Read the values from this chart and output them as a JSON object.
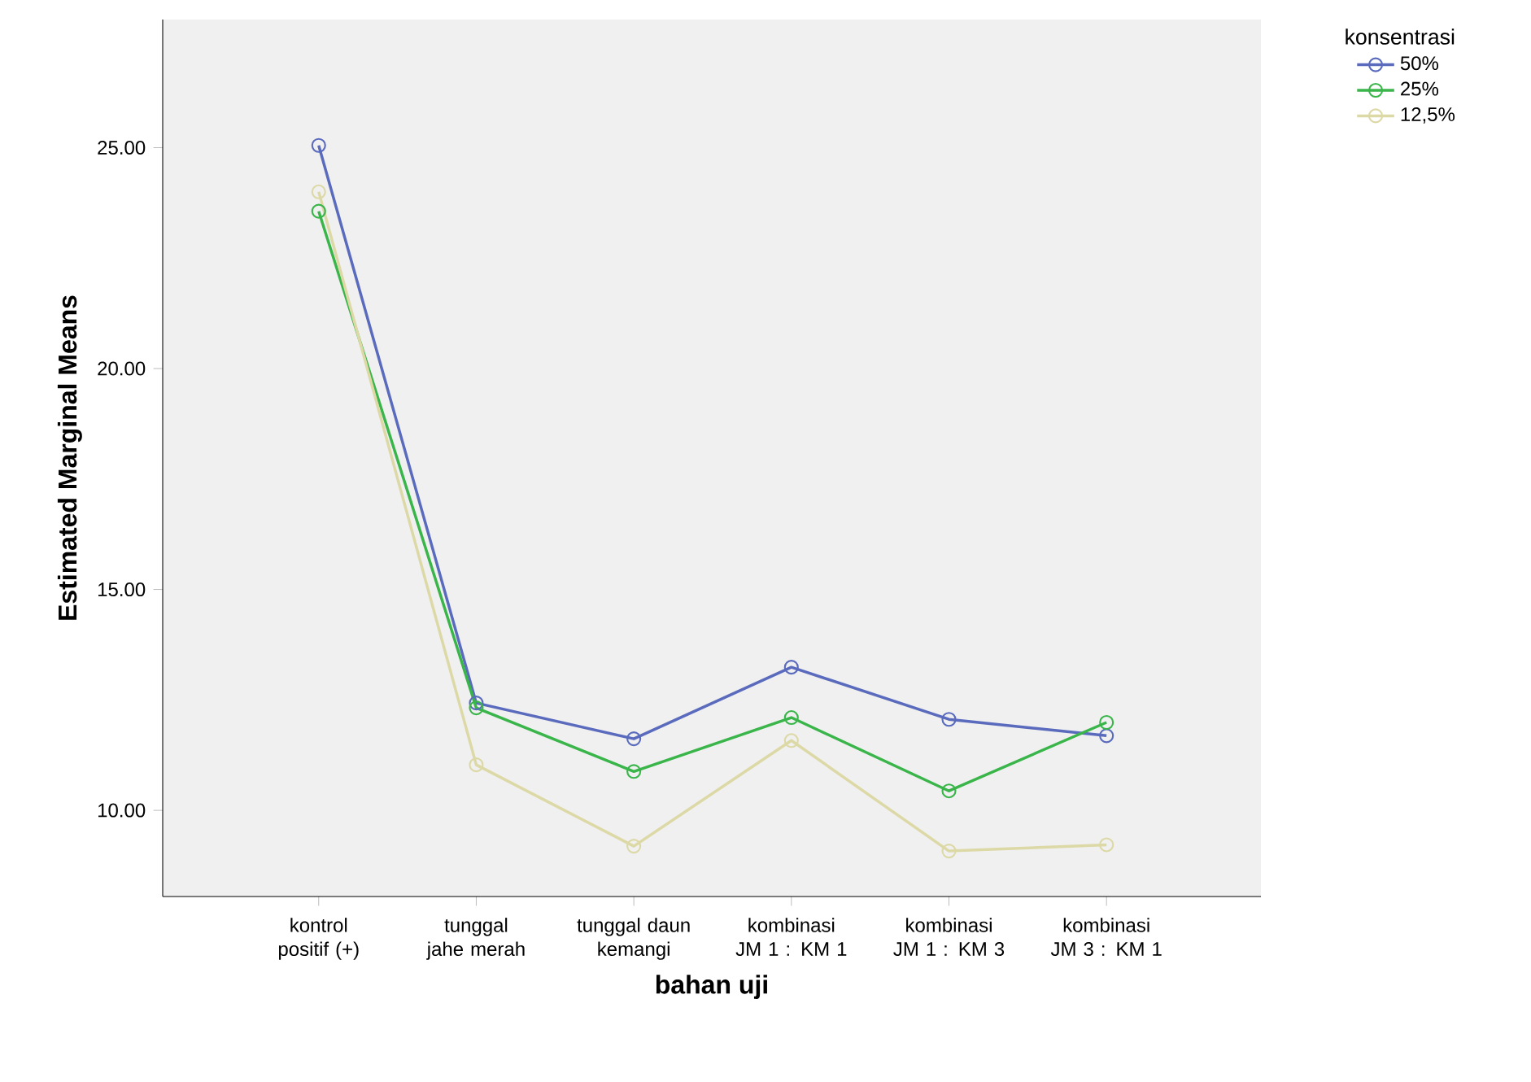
{
  "chart_data": {
    "type": "line",
    "xlabel": "bahan uji",
    "ylabel": "Estimated Marginal Means",
    "legend_title": "konsentrasi",
    "legend": "right",
    "marker": "circle",
    "line_style": "solid",
    "grid": false,
    "categories": [
      "kontrol positif (+)",
      "tunggal jahe merah",
      "tunggal daun kemangi",
      "kombinasi JM 1 : KM 1",
      "kombinasi JM 1 : KM 3",
      "kombinasi JM 3 : KM 1"
    ],
    "ylim": [
      8.05,
      27.9
    ],
    "yticks": [
      {
        "value": 10,
        "label": "10.00"
      },
      {
        "value": 15,
        "label": "15.00"
      },
      {
        "value": 20,
        "label": "20.00"
      },
      {
        "value": 25,
        "label": "25.00"
      }
    ],
    "series": [
      {
        "name": "50%",
        "color": "#5a6bbd",
        "values": [
          25.05,
          12.43,
          11.62,
          13.24,
          12.06,
          11.69
        ]
      },
      {
        "name": "25%",
        "color": "#3ab54a",
        "values": [
          23.56,
          12.32,
          10.88,
          12.1,
          10.44,
          11.99
        ]
      },
      {
        "name": "12,5%",
        "color": "#dcd9a6",
        "values": [
          24.0,
          11.03,
          9.19,
          11.58,
          9.08,
          9.22
        ]
      }
    ]
  }
}
